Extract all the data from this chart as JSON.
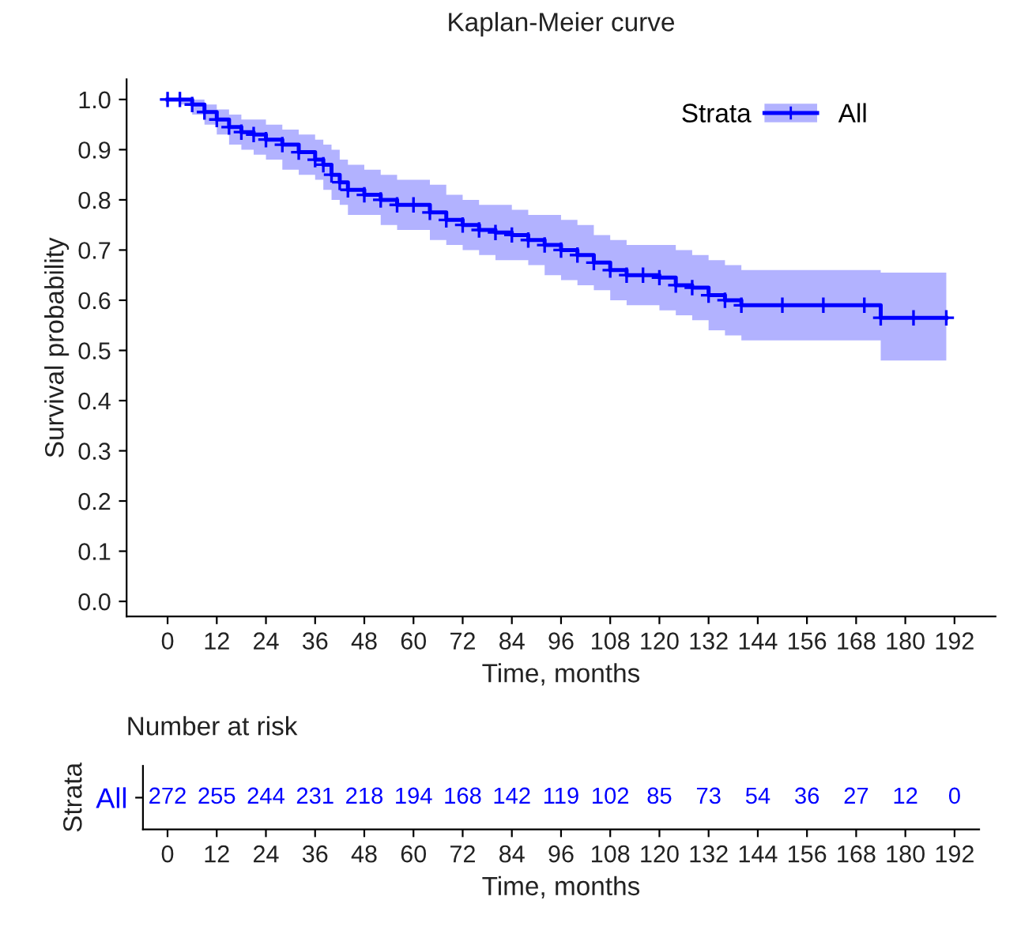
{
  "chart_data": [
    {
      "type": "step",
      "title": "Kaplan-Meier curve",
      "xlabel": "Time, months",
      "ylabel": "Survival probability",
      "legend_title": "Strata",
      "legend": "top right",
      "marker": "cross",
      "grid": false,
      "xlim": [
        -10,
        202
      ],
      "ylim": [
        -0.03,
        1.04
      ],
      "xticks": [
        0,
        12,
        24,
        36,
        48,
        60,
        72,
        84,
        96,
        108,
        120,
        132,
        144,
        156,
        168,
        180,
        192
      ],
      "yticks": [
        {
          "value": 0,
          "label": "0.0"
        },
        0.1,
        0.2,
        0.3,
        0.4,
        0.5,
        0.6,
        0.7,
        0.8,
        0.9,
        {
          "value": 1,
          "label": "1.0"
        }
      ],
      "series": [
        {
          "name": "All",
          "color": "#0000ff",
          "x": [
            0,
            3,
            6,
            9,
            12,
            15,
            18,
            21,
            24,
            28,
            32,
            36,
            38,
            40,
            42,
            44,
            48,
            52,
            56,
            60,
            64,
            68,
            72,
            76,
            80,
            84,
            88,
            92,
            96,
            100,
            104,
            108,
            112,
            116,
            120,
            124,
            128,
            132,
            136,
            140,
            150,
            160,
            170,
            174,
            182,
            190
          ],
          "values": [
            1.0,
            1.0,
            0.99,
            0.975,
            0.96,
            0.945,
            0.935,
            0.93,
            0.92,
            0.91,
            0.895,
            0.88,
            0.87,
            0.85,
            0.835,
            0.82,
            0.81,
            0.8,
            0.79,
            0.79,
            0.775,
            0.76,
            0.75,
            0.74,
            0.735,
            0.73,
            0.72,
            0.71,
            0.7,
            0.69,
            0.675,
            0.66,
            0.65,
            0.65,
            0.645,
            0.63,
            0.625,
            0.61,
            0.6,
            0.59,
            0.59,
            0.59,
            0.59,
            0.565,
            0.565,
            0.565
          ],
          "lower": [
            1.0,
            0.99,
            0.97,
            0.95,
            0.93,
            0.91,
            0.9,
            0.89,
            0.88,
            0.86,
            0.85,
            0.84,
            0.82,
            0.8,
            0.79,
            0.77,
            0.77,
            0.75,
            0.74,
            0.74,
            0.72,
            0.71,
            0.7,
            0.69,
            0.68,
            0.68,
            0.67,
            0.65,
            0.64,
            0.63,
            0.62,
            0.6,
            0.59,
            0.59,
            0.58,
            0.57,
            0.56,
            0.54,
            0.53,
            0.52,
            0.52,
            0.52,
            0.52,
            0.48,
            0.48,
            0.48
          ],
          "upper": [
            1.0,
            1.0,
            1.0,
            0.99,
            0.98,
            0.97,
            0.96,
            0.96,
            0.95,
            0.94,
            0.93,
            0.92,
            0.91,
            0.9,
            0.88,
            0.87,
            0.86,
            0.85,
            0.84,
            0.84,
            0.83,
            0.81,
            0.8,
            0.79,
            0.79,
            0.78,
            0.77,
            0.77,
            0.76,
            0.75,
            0.73,
            0.72,
            0.71,
            0.71,
            0.71,
            0.7,
            0.69,
            0.68,
            0.67,
            0.66,
            0.66,
            0.66,
            0.66,
            0.655,
            0.655,
            0.655
          ]
        }
      ]
    },
    {
      "type": "heatmap",
      "title": "Number at risk",
      "xlabel": "Time, months",
      "ylabel": "Strata",
      "data_labels": true,
      "categories": [
        "0",
        "12",
        "24",
        "36",
        "48",
        "60",
        "72",
        "84",
        "96",
        "108",
        "120",
        "132",
        "144",
        "156",
        "168",
        "180",
        "192"
      ],
      "y_categories": [
        "All"
      ],
      "cells": [
        [
          272,
          255,
          244,
          231,
          218,
          194,
          168,
          142,
          119,
          102,
          85,
          73,
          54,
          36,
          27,
          12,
          0
        ]
      ]
    }
  ]
}
